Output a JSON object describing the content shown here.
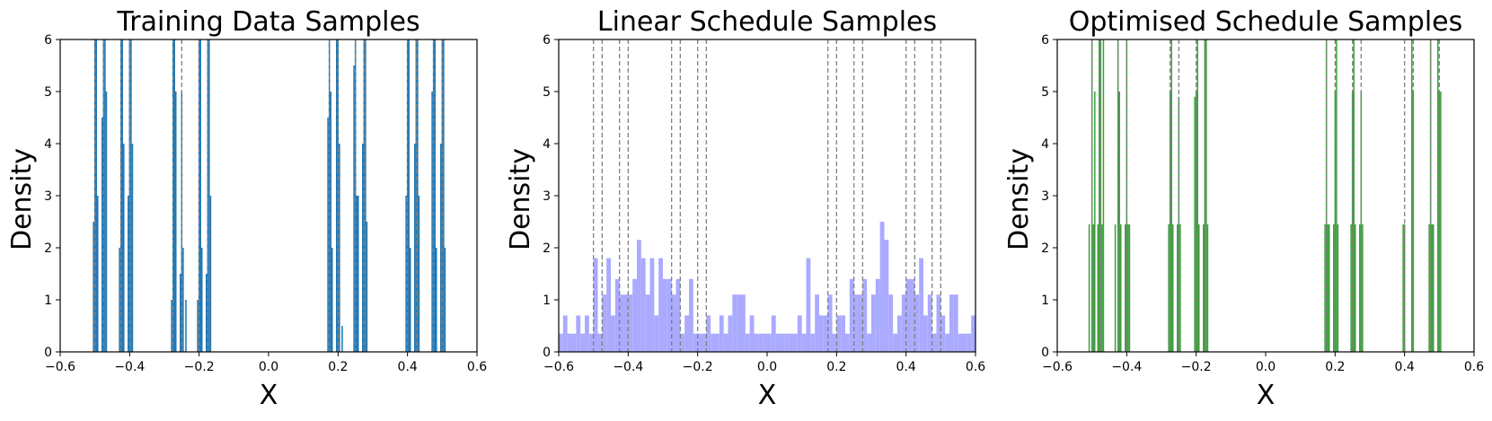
{
  "figure": {
    "dashed_line_positions": [
      -0.5,
      -0.475,
      -0.425,
      -0.4,
      -0.275,
      -0.25,
      -0.2,
      -0.175,
      0.175,
      0.2,
      0.25,
      0.275,
      0.4,
      0.425,
      0.475,
      0.5
    ],
    "dashed_line_color": "#808080"
  },
  "chart_data": [
    {
      "type": "histogram",
      "title": "Training Data Samples",
      "xlabel": "X",
      "ylabel": "Density",
      "xlim": [
        -0.6,
        0.6
      ],
      "ylim": [
        0,
        6
      ],
      "xticks": [
        "−0.6",
        "−0.4",
        "−0.2",
        "0.0",
        "0.2",
        "0.4",
        "0.6"
      ],
      "yticks": [
        "0",
        "1",
        "2",
        "3",
        "4",
        "5",
        "6"
      ],
      "bar_color": "#1f77b4",
      "bar_opacity": 1.0,
      "bin_width": 0.004,
      "bins": [
        {
          "x": -0.504,
          "density": 2.5
        },
        {
          "x": -0.5,
          "density": 6
        },
        {
          "x": -0.496,
          "density": 6
        },
        {
          "x": -0.492,
          "density": 3
        },
        {
          "x": -0.479,
          "density": 4.5
        },
        {
          "x": -0.475,
          "density": 6
        },
        {
          "x": -0.471,
          "density": 6
        },
        {
          "x": -0.467,
          "density": 5
        },
        {
          "x": -0.429,
          "density": 2
        },
        {
          "x": -0.425,
          "density": 6
        },
        {
          "x": -0.421,
          "density": 6
        },
        {
          "x": -0.417,
          "density": 4
        },
        {
          "x": -0.404,
          "density": 3
        },
        {
          "x": -0.4,
          "density": 6
        },
        {
          "x": -0.396,
          "density": 6
        },
        {
          "x": -0.392,
          "density": 4
        },
        {
          "x": -0.279,
          "density": 1
        },
        {
          "x": -0.275,
          "density": 6
        },
        {
          "x": -0.271,
          "density": 6
        },
        {
          "x": -0.267,
          "density": 5
        },
        {
          "x": -0.254,
          "density": 1.5
        },
        {
          "x": -0.25,
          "density": 5
        },
        {
          "x": -0.246,
          "density": 2
        },
        {
          "x": -0.238,
          "density": 1
        },
        {
          "x": -0.204,
          "density": 1
        },
        {
          "x": -0.2,
          "density": 6
        },
        {
          "x": -0.196,
          "density": 6
        },
        {
          "x": -0.192,
          "density": 2
        },
        {
          "x": -0.179,
          "density": 1.5
        },
        {
          "x": -0.175,
          "density": 6
        },
        {
          "x": -0.171,
          "density": 6
        },
        {
          "x": -0.167,
          "density": 3
        },
        {
          "x": 0.171,
          "density": 4.5
        },
        {
          "x": 0.175,
          "density": 6
        },
        {
          "x": 0.179,
          "density": 5
        },
        {
          "x": 0.183,
          "density": 2
        },
        {
          "x": 0.196,
          "density": 6
        },
        {
          "x": 0.2,
          "density": 6
        },
        {
          "x": 0.204,
          "density": 4
        },
        {
          "x": 0.212,
          "density": 0.5
        },
        {
          "x": 0.246,
          "density": 5.5
        },
        {
          "x": 0.25,
          "density": 6
        },
        {
          "x": 0.254,
          "density": 3
        },
        {
          "x": 0.258,
          "density": 3
        },
        {
          "x": 0.271,
          "density": 4
        },
        {
          "x": 0.275,
          "density": 6
        },
        {
          "x": 0.279,
          "density": 6
        },
        {
          "x": 0.283,
          "density": 2.5
        },
        {
          "x": 0.396,
          "density": 3
        },
        {
          "x": 0.4,
          "density": 6
        },
        {
          "x": 0.404,
          "density": 6
        },
        {
          "x": 0.408,
          "density": 2
        },
        {
          "x": 0.421,
          "density": 4
        },
        {
          "x": 0.425,
          "density": 6
        },
        {
          "x": 0.429,
          "density": 6
        },
        {
          "x": 0.433,
          "density": 3
        },
        {
          "x": 0.471,
          "density": 5
        },
        {
          "x": 0.475,
          "density": 6
        },
        {
          "x": 0.479,
          "density": 6
        },
        {
          "x": 0.483,
          "density": 2
        },
        {
          "x": 0.496,
          "density": 4
        },
        {
          "x": 0.5,
          "density": 6
        },
        {
          "x": 0.504,
          "density": 6
        },
        {
          "x": 0.508,
          "density": 2
        }
      ]
    },
    {
      "type": "histogram",
      "title": "Linear Schedule Samples",
      "xlabel": "X",
      "ylabel": "Density",
      "xlim": [
        -0.6,
        0.6
      ],
      "ylim": [
        0,
        6
      ],
      "xticks": [
        "−0.6",
        "−0.4",
        "−0.2",
        "0.0",
        "0.2",
        "0.4",
        "0.6"
      ],
      "yticks": [
        "0",
        "1",
        "2",
        "3",
        "4",
        "5",
        "6"
      ],
      "bar_color": "#aaaaff",
      "bar_opacity": 1.0,
      "bin_start": -0.6,
      "bin_width": 0.0125,
      "densities": [
        0.35,
        0.7,
        0.35,
        0.35,
        0.7,
        0.35,
        0.7,
        0.35,
        1.8,
        0.35,
        1.1,
        1.8,
        0.7,
        1.4,
        1.1,
        1.1,
        1.1,
        1.4,
        2.15,
        1.8,
        1.1,
        1.8,
        0.7,
        1.8,
        1.4,
        1.4,
        1.1,
        1.4,
        0.35,
        0.7,
        1.4,
        0.35,
        0.35,
        0.35,
        0.7,
        0.35,
        0.35,
        0.7,
        0.35,
        0.7,
        1.1,
        1.1,
        1.1,
        0.35,
        0.7,
        0.35,
        0.35,
        0.35,
        0.35,
        0.7,
        0.35,
        0.35,
        0.35,
        0.35,
        0.35,
        0.7,
        0.35,
        1.8,
        0.35,
        1.1,
        0.7,
        0.7,
        1.1,
        0.35,
        0.7,
        0.7,
        0.35,
        1.4,
        1.1,
        1.1,
        1.4,
        0.35,
        1.1,
        1.4,
        2.5,
        2.15,
        1.1,
        0.35,
        0.7,
        1.1,
        1.4,
        1.4,
        1.1,
        1.8,
        0.7,
        1.1,
        0.35,
        1.1,
        0.7,
        0.35,
        1.1,
        1.1,
        0.35,
        0.35,
        0.35,
        0.7
      ]
    },
    {
      "type": "histogram",
      "title": "Optimised Schedule Samples",
      "xlabel": "X",
      "ylabel": "Density",
      "xlim": [
        -0.6,
        0.6
      ],
      "ylim": [
        0,
        6
      ],
      "xticks": [
        "−0.6",
        "−0.4",
        "−0.2",
        "0.0",
        "0.2",
        "0.4",
        "0.6"
      ],
      "yticks": [
        "0",
        "1",
        "2",
        "3",
        "4",
        "5",
        "6"
      ],
      "bar_color": "#008000",
      "bar_opacity": 0.75,
      "bin_width": 0.004,
      "bins": [
        {
          "x": -0.508,
          "density": 2.45
        },
        {
          "x": -0.5,
          "density": 6
        },
        {
          "x": -0.496,
          "density": 2.45
        },
        {
          "x": -0.492,
          "density": 5
        },
        {
          "x": -0.483,
          "density": 2.45
        },
        {
          "x": -0.479,
          "density": 6
        },
        {
          "x": -0.475,
          "density": 6
        },
        {
          "x": -0.471,
          "density": 2.45
        },
        {
          "x": -0.467,
          "density": 6
        },
        {
          "x": -0.433,
          "density": 2.45
        },
        {
          "x": -0.425,
          "density": 6
        },
        {
          "x": -0.421,
          "density": 5
        },
        {
          "x": -0.417,
          "density": 2.45
        },
        {
          "x": -0.404,
          "density": 2.45
        },
        {
          "x": -0.4,
          "density": 6
        },
        {
          "x": -0.396,
          "density": 2.45
        },
        {
          "x": -0.392,
          "density": 2.45
        },
        {
          "x": -0.279,
          "density": 2.45
        },
        {
          "x": -0.275,
          "density": 5
        },
        {
          "x": -0.271,
          "density": 6
        },
        {
          "x": -0.267,
          "density": 2.45
        },
        {
          "x": -0.254,
          "density": 2.45
        },
        {
          "x": -0.25,
          "density": 4.9
        },
        {
          "x": -0.246,
          "density": 2.45
        },
        {
          "x": -0.204,
          "density": 4.9
        },
        {
          "x": -0.2,
          "density": 5
        },
        {
          "x": -0.196,
          "density": 6
        },
        {
          "x": -0.192,
          "density": 2.45
        },
        {
          "x": -0.179,
          "density": 2.45
        },
        {
          "x": -0.175,
          "density": 6
        },
        {
          "x": -0.171,
          "density": 6
        },
        {
          "x": -0.167,
          "density": 2.45
        },
        {
          "x": 0.171,
          "density": 2.45
        },
        {
          "x": 0.175,
          "density": 6
        },
        {
          "x": 0.179,
          "density": 2.45
        },
        {
          "x": 0.183,
          "density": 2.45
        },
        {
          "x": 0.196,
          "density": 2.45
        },
        {
          "x": 0.2,
          "density": 5
        },
        {
          "x": 0.204,
          "density": 6
        },
        {
          "x": 0.208,
          "density": 2.45
        },
        {
          "x": 0.246,
          "density": 2.45
        },
        {
          "x": 0.25,
          "density": 5
        },
        {
          "x": 0.254,
          "density": 6
        },
        {
          "x": 0.258,
          "density": 2.45
        },
        {
          "x": 0.271,
          "density": 2.45
        },
        {
          "x": 0.275,
          "density": 5
        },
        {
          "x": 0.279,
          "density": 2.45
        },
        {
          "x": 0.396,
          "density": 2.45
        },
        {
          "x": 0.4,
          "density": 2.45
        },
        {
          "x": 0.421,
          "density": 6
        },
        {
          "x": 0.425,
          "density": 5
        },
        {
          "x": 0.471,
          "density": 2.45
        },
        {
          "x": 0.475,
          "density": 6
        },
        {
          "x": 0.479,
          "density": 2.45
        },
        {
          "x": 0.483,
          "density": 2.45
        },
        {
          "x": 0.496,
          "density": 6
        },
        {
          "x": 0.5,
          "density": 5
        },
        {
          "x": 0.504,
          "density": 5
        }
      ]
    }
  ]
}
